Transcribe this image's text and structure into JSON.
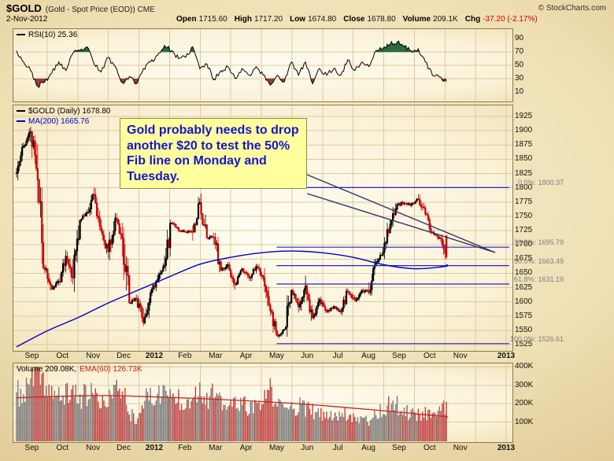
{
  "header": {
    "symbol": "$GOLD",
    "description": "(Gold - Spot Price (EOD)) CME",
    "copyright": "© StockCharts.com",
    "date": "2-Nov-2012"
  },
  "quote": {
    "open_label": "Open",
    "open_value": "1715.60",
    "high_label": "High",
    "high_value": "1717.20",
    "low_label": "Low",
    "low_value": "1674.80",
    "close_label": "Close",
    "close_value": "1678.80",
    "volume_label": "Volume",
    "volume_value": "209.1K",
    "chg_label": "Chg",
    "chg_value": "-37.20 (-2.17%)"
  },
  "rsi_panel": {
    "label": "RSI(10) 25.36",
    "yticks": [
      90,
      70,
      50,
      30,
      10
    ]
  },
  "main_panel": {
    "label": "$GOLD (Daily) 1678.80",
    "ma_label": "MA(200) 1665.76",
    "yticks": [
      1925,
      1900,
      1875,
      1850,
      1825,
      1800,
      1775,
      1750,
      1725,
      1700,
      1675,
      1650,
      1625,
      1600,
      1575,
      1550,
      1525
    ],
    "annotation": "Gold probably needs to drop another $20 to test the 50% Fib line on Monday and Tuesday."
  },
  "volume_panel": {
    "label_volume": "Volume 209.08K,",
    "label_ema": "EMA(60) 126.73K",
    "yticks": [
      "400K",
      "300K",
      "200K",
      "100K"
    ],
    "ytick_values": [
      400,
      300,
      200,
      100
    ]
  },
  "x_axis": {
    "labels": [
      "Sep",
      "Oct",
      "Nov",
      "Dec",
      "2012",
      "Feb",
      "Mar",
      "Apr",
      "May",
      "Jun",
      "Jul",
      "Aug",
      "Sep",
      "Oct",
      "Nov",
      "2013"
    ]
  },
  "chart_data": [
    {
      "type": "line",
      "name": "RSI(10)",
      "panel": "indicator",
      "ylim": [
        0,
        100
      ],
      "overbought": 70,
      "oversold": 30,
      "sampling": "weekly approximation, Sep-2011 to 2-Nov-2012",
      "values": [
        72,
        55,
        42,
        18,
        25,
        38,
        55,
        42,
        68,
        72,
        78,
        52,
        40,
        62,
        48,
        24,
        33,
        22,
        45,
        55,
        65,
        80,
        72,
        60,
        62,
        78,
        45,
        52,
        28,
        42,
        48,
        30,
        45,
        35,
        48,
        35,
        20,
        35,
        25,
        55,
        35,
        55,
        22,
        45,
        35,
        45,
        35,
        58,
        42,
        55,
        48,
        72,
        76,
        82,
        85,
        78,
        72,
        75,
        55,
        35,
        32,
        25
      ],
      "last": 25.36
    },
    {
      "type": "candlestick",
      "name": "$GOLD Daily",
      "ylim": [
        1525,
        1925
      ],
      "x_start": "Sep 2011",
      "x_end": "2-Nov-2012",
      "sampling": "weekly close approximation read from chart",
      "close_weekly": [
        1826,
        1873,
        1898,
        1814,
        1657,
        1622,
        1636,
        1680,
        1642,
        1743,
        1756,
        1788,
        1725,
        1688,
        1747,
        1711,
        1598,
        1606,
        1563,
        1616,
        1639,
        1664,
        1738,
        1725,
        1722,
        1723,
        1774,
        1712,
        1713,
        1655,
        1665,
        1630,
        1658,
        1642,
        1662,
        1642,
        1584,
        1540,
        1552,
        1620,
        1591,
        1628,
        1572,
        1604,
        1583,
        1592,
        1582,
        1618,
        1603,
        1620,
        1616,
        1670,
        1687,
        1735,
        1770,
        1773,
        1771,
        1780,
        1754,
        1722,
        1712,
        1679
      ],
      "last_ohlc": {
        "open": 1715.6,
        "high": 1717.2,
        "low": 1674.8,
        "close": 1678.8
      },
      "ma200_monthly": [
        1521,
        1549,
        1572,
        1598,
        1621,
        1644,
        1666,
        1678,
        1686,
        1689,
        1686,
        1678,
        1665,
        1658,
        1662
      ],
      "ma200_last": 1665.76,
      "fib_retracement": [
        {
          "level": "0.0%",
          "price": 1800.37
        },
        {
          "level": "38.2%",
          "price": 1695.79
        },
        {
          "level": "50.0%",
          "price": 1663.49
        },
        {
          "level": "61.8%",
          "price": 1631.19
        },
        {
          "level": "100.0%",
          "price": 1526.61
        }
      ]
    },
    {
      "type": "bar",
      "name": "Volume",
      "unit": "K",
      "ylim_k": [
        0,
        400
      ],
      "sampling": "weekly approximation read from chart",
      "values_k": [
        260,
        240,
        320,
        390,
        310,
        260,
        230,
        250,
        270,
        230,
        250,
        260,
        180,
        240,
        260,
        300,
        150,
        120,
        220,
        230,
        250,
        270,
        240,
        230,
        210,
        260,
        280,
        230,
        250,
        200,
        180,
        210,
        190,
        185,
        170,
        220,
        270,
        200,
        170,
        180,
        190,
        170,
        160,
        140,
        130,
        140,
        150,
        140,
        130,
        120,
        110,
        150,
        160,
        200,
        190,
        160,
        150,
        140,
        150,
        160,
        150,
        209
      ],
      "last_k": 209.08,
      "ema60_monthly_k": [
        232,
        238,
        242,
        244,
        240,
        234,
        228,
        220,
        212,
        202,
        190,
        176,
        162,
        146,
        130
      ],
      "ema60_last_k": 126.73
    }
  ],
  "colors": {
    "candle_up": "#000000",
    "candle_down": "#cc0000",
    "ma_blue": "#0000cc",
    "fib_blue": "#2424cc",
    "fib_label_gray": "#7d7d7d",
    "ema_red": "#cc2222",
    "vol_up": "#7b7b7b",
    "vol_down": "#c04040",
    "rsi_line": "#000000",
    "rsi_overbought_fill": "#2c6b3f",
    "rsi_oversold_fill": "#9e3c3c",
    "annotation_bg": "#ffff9e",
    "annotation_text": "#1515cc",
    "chg_red": "#cc0000",
    "grid": "#dcca9e",
    "callout_line": "#333366"
  }
}
